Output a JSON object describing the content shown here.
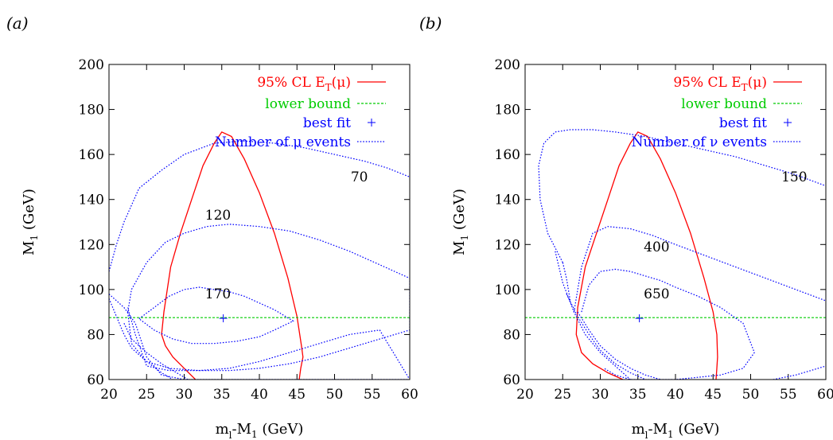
{
  "chart_data": [
    {
      "type": "line",
      "panel_label": "(a)",
      "xlabel_main": "m",
      "xlabel_sub": "l",
      "xlabel_rest": "-M",
      "xlabel_sub2": "1",
      "xlabel_unit": " (GeV)",
      "ylabel_main": "M",
      "ylabel_sub": "1",
      "ylabel_unit": " (GeV)",
      "xlim": [
        20,
        60
      ],
      "ylim": [
        60,
        200
      ],
      "xticks": [
        20,
        25,
        30,
        35,
        40,
        45,
        50,
        55,
        60
      ],
      "yticks": [
        60,
        80,
        100,
        120,
        140,
        160,
        180,
        200
      ],
      "grid": false,
      "legend_position": "top-right",
      "legend": [
        {
          "label": "95% CL E",
          "sub": "T",
          "suffix": "(μ)",
          "color": "#ff0000",
          "style": "solid"
        },
        {
          "label": "lower bound",
          "color": "#00cc00",
          "style": "dashed"
        },
        {
          "label": "best fit",
          "color": "#0000ff",
          "style": "point"
        },
        {
          "label": "Number of μ events",
          "color": "#0000ff",
          "style": "dotted"
        }
      ],
      "series": [
        {
          "id": "cl95",
          "color": "#ff0000",
          "style": "solid",
          "x": [
            31.5,
            30,
            28.5,
            27.5,
            27,
            27.3,
            28.2,
            29.5,
            31,
            32.5,
            34,
            35,
            36.3,
            38,
            40,
            42,
            43.8,
            45,
            45.6,
            45.8,
            45.5,
            45.3
          ],
          "y": [
            60,
            65,
            70,
            75,
            80,
            90,
            110,
            125,
            140,
            155,
            165,
            170,
            168,
            158,
            143,
            125,
            105,
            88,
            75,
            70,
            65,
            60
          ]
        },
        {
          "id": "lower-bound",
          "color": "#00cc00",
          "style": "dashed",
          "x": [
            20,
            60
          ],
          "y": [
            87.5,
            87.5
          ]
        },
        {
          "id": "contour-70",
          "color": "#0000ff",
          "style": "dotted",
          "x": [
            20,
            21,
            22,
            24,
            27,
            30,
            34,
            38,
            42,
            46,
            50,
            54,
            57,
            60
          ],
          "y": [
            108,
            120,
            130,
            145,
            153,
            160,
            165,
            166,
            165,
            163,
            160,
            157,
            154,
            150
          ]
        },
        {
          "id": "contour-120",
          "color": "#0000ff",
          "style": "dotted",
          "x": [
            20,
            22,
            23.5,
            25,
            27,
            30,
            33,
            36,
            40,
            44,
            48,
            52,
            56,
            60,
            56,
            52,
            48,
            44,
            40,
            36,
            32,
            28,
            25,
            23.5,
            22.5,
            22.5
          ],
          "y": [
            98,
            92,
            85,
            70,
            62,
            60,
            60,
            60,
            60,
            60,
            60,
            60,
            60,
            60,
            82,
            80,
            76,
            72,
            68,
            65,
            64,
            64,
            66,
            80,
            92,
            92
          ]
        },
        {
          "id": "contour-120-ring",
          "color": "#0000ff",
          "style": "dotted",
          "x": [
            22.5,
            23,
            25,
            27.5,
            30,
            33,
            36,
            40,
            44,
            48,
            52,
            56,
            60,
            60,
            56,
            52,
            48,
            44,
            40,
            36,
            32,
            28,
            25,
            23,
            22.5
          ],
          "y": [
            90,
            100,
            112,
            121,
            125,
            128,
            129,
            128,
            126,
            122,
            117,
            111,
            105,
            82,
            78,
            74,
            70,
            67,
            65,
            64,
            64,
            65,
            68,
            76,
            90
          ]
        },
        {
          "id": "contour-170",
          "color": "#0000ff",
          "style": "dotted",
          "x": [
            24,
            26,
            28,
            30,
            32,
            34,
            36,
            38,
            40,
            42,
            44.5,
            42,
            40,
            37,
            34,
            31,
            28.5,
            26,
            24
          ],
          "y": [
            87,
            92,
            97,
            100,
            101,
            100,
            99,
            97,
            94,
            91,
            86,
            82,
            79,
            77,
            76,
            76,
            78,
            82,
            87
          ]
        },
        {
          "id": "contour-outer-lower",
          "color": "#0000ff",
          "style": "dotted",
          "x": [
            20,
            21,
            22,
            23,
            25,
            27,
            28.5
          ],
          "y": [
            96,
            88,
            80,
            74,
            68,
            63,
            60
          ]
        },
        {
          "id": "contour-outer-lower-2",
          "color": "#0000ff",
          "style": "dotted",
          "x": [
            22,
            23,
            25,
            27,
            29,
            30.5
          ],
          "y": [
            85,
            78,
            72,
            67,
            63,
            60
          ]
        }
      ],
      "best_fit": {
        "x": 35.2,
        "y": 87.2
      },
      "contour_labels": [
        {
          "text": "70",
          "x": 53.3,
          "y": 148
        },
        {
          "text": "120",
          "x": 34.5,
          "y": 131
        },
        {
          "text": "170",
          "x": 34.5,
          "y": 96
        }
      ]
    },
    {
      "type": "line",
      "panel_label": "(b)",
      "xlabel_main": "m",
      "xlabel_sub": "l",
      "xlabel_rest": "-M",
      "xlabel_sub2": "1",
      "xlabel_unit": " (GeV)",
      "ylabel_main": "M",
      "ylabel_sub": "1",
      "ylabel_unit": " (GeV)",
      "xlim": [
        20,
        60
      ],
      "ylim": [
        60,
        200
      ],
      "xticks": [
        20,
        25,
        30,
        35,
        40,
        45,
        50,
        55,
        60
      ],
      "yticks": [
        60,
        80,
        100,
        120,
        140,
        160,
        180,
        200
      ],
      "grid": false,
      "legend_position": "top-right",
      "legend": [
        {
          "label": "95% CL E",
          "sub": "T",
          "suffix": "(μ)",
          "color": "#ff0000",
          "style": "solid"
        },
        {
          "label": "lower bound",
          "color": "#00cc00",
          "style": "dashed"
        },
        {
          "label": "best fit",
          "color": "#0000ff",
          "style": "point"
        },
        {
          "label": "Number of ν events",
          "color": "#0000ff",
          "style": "dotted"
        }
      ],
      "series": [
        {
          "id": "cl95",
          "color": "#ff0000",
          "style": "solid",
          "x": [
            33,
            31,
            29,
            27.5,
            26.8,
            27,
            28,
            29.5,
            31,
            32.5,
            34,
            35,
            36.3,
            38,
            40,
            42,
            43.8,
            45,
            45.5,
            45.6,
            45.5,
            45.4
          ],
          "y": [
            60,
            63,
            67,
            72,
            80,
            92,
            110,
            125,
            140,
            155,
            165,
            170,
            168,
            158,
            143,
            125,
            105,
            90,
            80,
            70,
            65,
            60
          ]
        },
        {
          "id": "lower-bound",
          "color": "#00cc00",
          "style": "dashed",
          "x": [
            20,
            60
          ],
          "y": [
            87.5,
            87.5
          ]
        },
        {
          "id": "contour-150",
          "color": "#0000ff",
          "style": "dotted",
          "x": [
            25,
            23,
            22,
            21.8,
            22.5,
            24,
            26,
            29,
            32,
            36,
            40,
            44,
            48,
            52,
            56,
            60
          ],
          "y": [
            112,
            125,
            140,
            155,
            165,
            170,
            171,
            171,
            170,
            168,
            165,
            162,
            159,
            155,
            151,
            146
          ],
          "extra_x": [
            25,
            25.5,
            26
          ],
          "extra_y": [
            112,
            105,
            95
          ]
        },
        {
          "id": "contour-400",
          "color": "#0000ff",
          "style": "dotted",
          "x": [
            26.5,
            27.5,
            29,
            31,
            34,
            37,
            40,
            44,
            48,
            52,
            56,
            60
          ],
          "y": [
            90,
            110,
            125,
            128,
            127,
            124,
            120,
            115,
            110,
            105,
            100,
            95
          ]
        },
        {
          "id": "contour-650",
          "color": "#0000ff",
          "style": "dotted",
          "x": [
            27.5,
            28.5,
            30,
            32,
            34,
            36,
            38,
            40,
            43,
            46,
            49,
            50.5,
            49,
            46,
            43,
            40,
            37,
            34,
            32,
            30.5
          ],
          "y": [
            90,
            102,
            108,
            109,
            108,
            106,
            104,
            101,
            97,
            92,
            85,
            72,
            65,
            62,
            61,
            60,
            60,
            60,
            62,
            65
          ]
        },
        {
          "id": "contour-outer-a",
          "color": "#0000ff",
          "style": "dotted",
          "x": [
            24,
            25,
            26.5,
            28,
            30,
            32,
            34
          ],
          "y": [
            117,
            103,
            90,
            80,
            72,
            66,
            60
          ]
        },
        {
          "id": "contour-outer-b",
          "color": "#0000ff",
          "style": "dotted",
          "x": [
            25.5,
            27,
            28.5,
            30,
            32,
            34,
            36
          ],
          "y": [
            98,
            88,
            80,
            73,
            67,
            63,
            60
          ]
        },
        {
          "id": "contour-outer-c",
          "color": "#0000ff",
          "style": "dotted",
          "x": [
            27,
            28.5,
            30,
            32,
            34,
            36,
            38
          ],
          "y": [
            90,
            82,
            75,
            69,
            65,
            62,
            60
          ]
        },
        {
          "id": "contour-outer-d",
          "color": "#0000ff",
          "style": "dotted",
          "x": [
            53,
            56,
            58,
            60
          ],
          "y": [
            60,
            62,
            64,
            66
          ]
        }
      ],
      "best_fit": {
        "x": 35.2,
        "y": 87.2
      },
      "contour_labels": [
        {
          "text": "150",
          "x": 55.8,
          "y": 148
        },
        {
          "text": "400",
          "x": 37.5,
          "y": 117
        },
        {
          "text": "650",
          "x": 37.5,
          "y": 96
        }
      ]
    }
  ]
}
